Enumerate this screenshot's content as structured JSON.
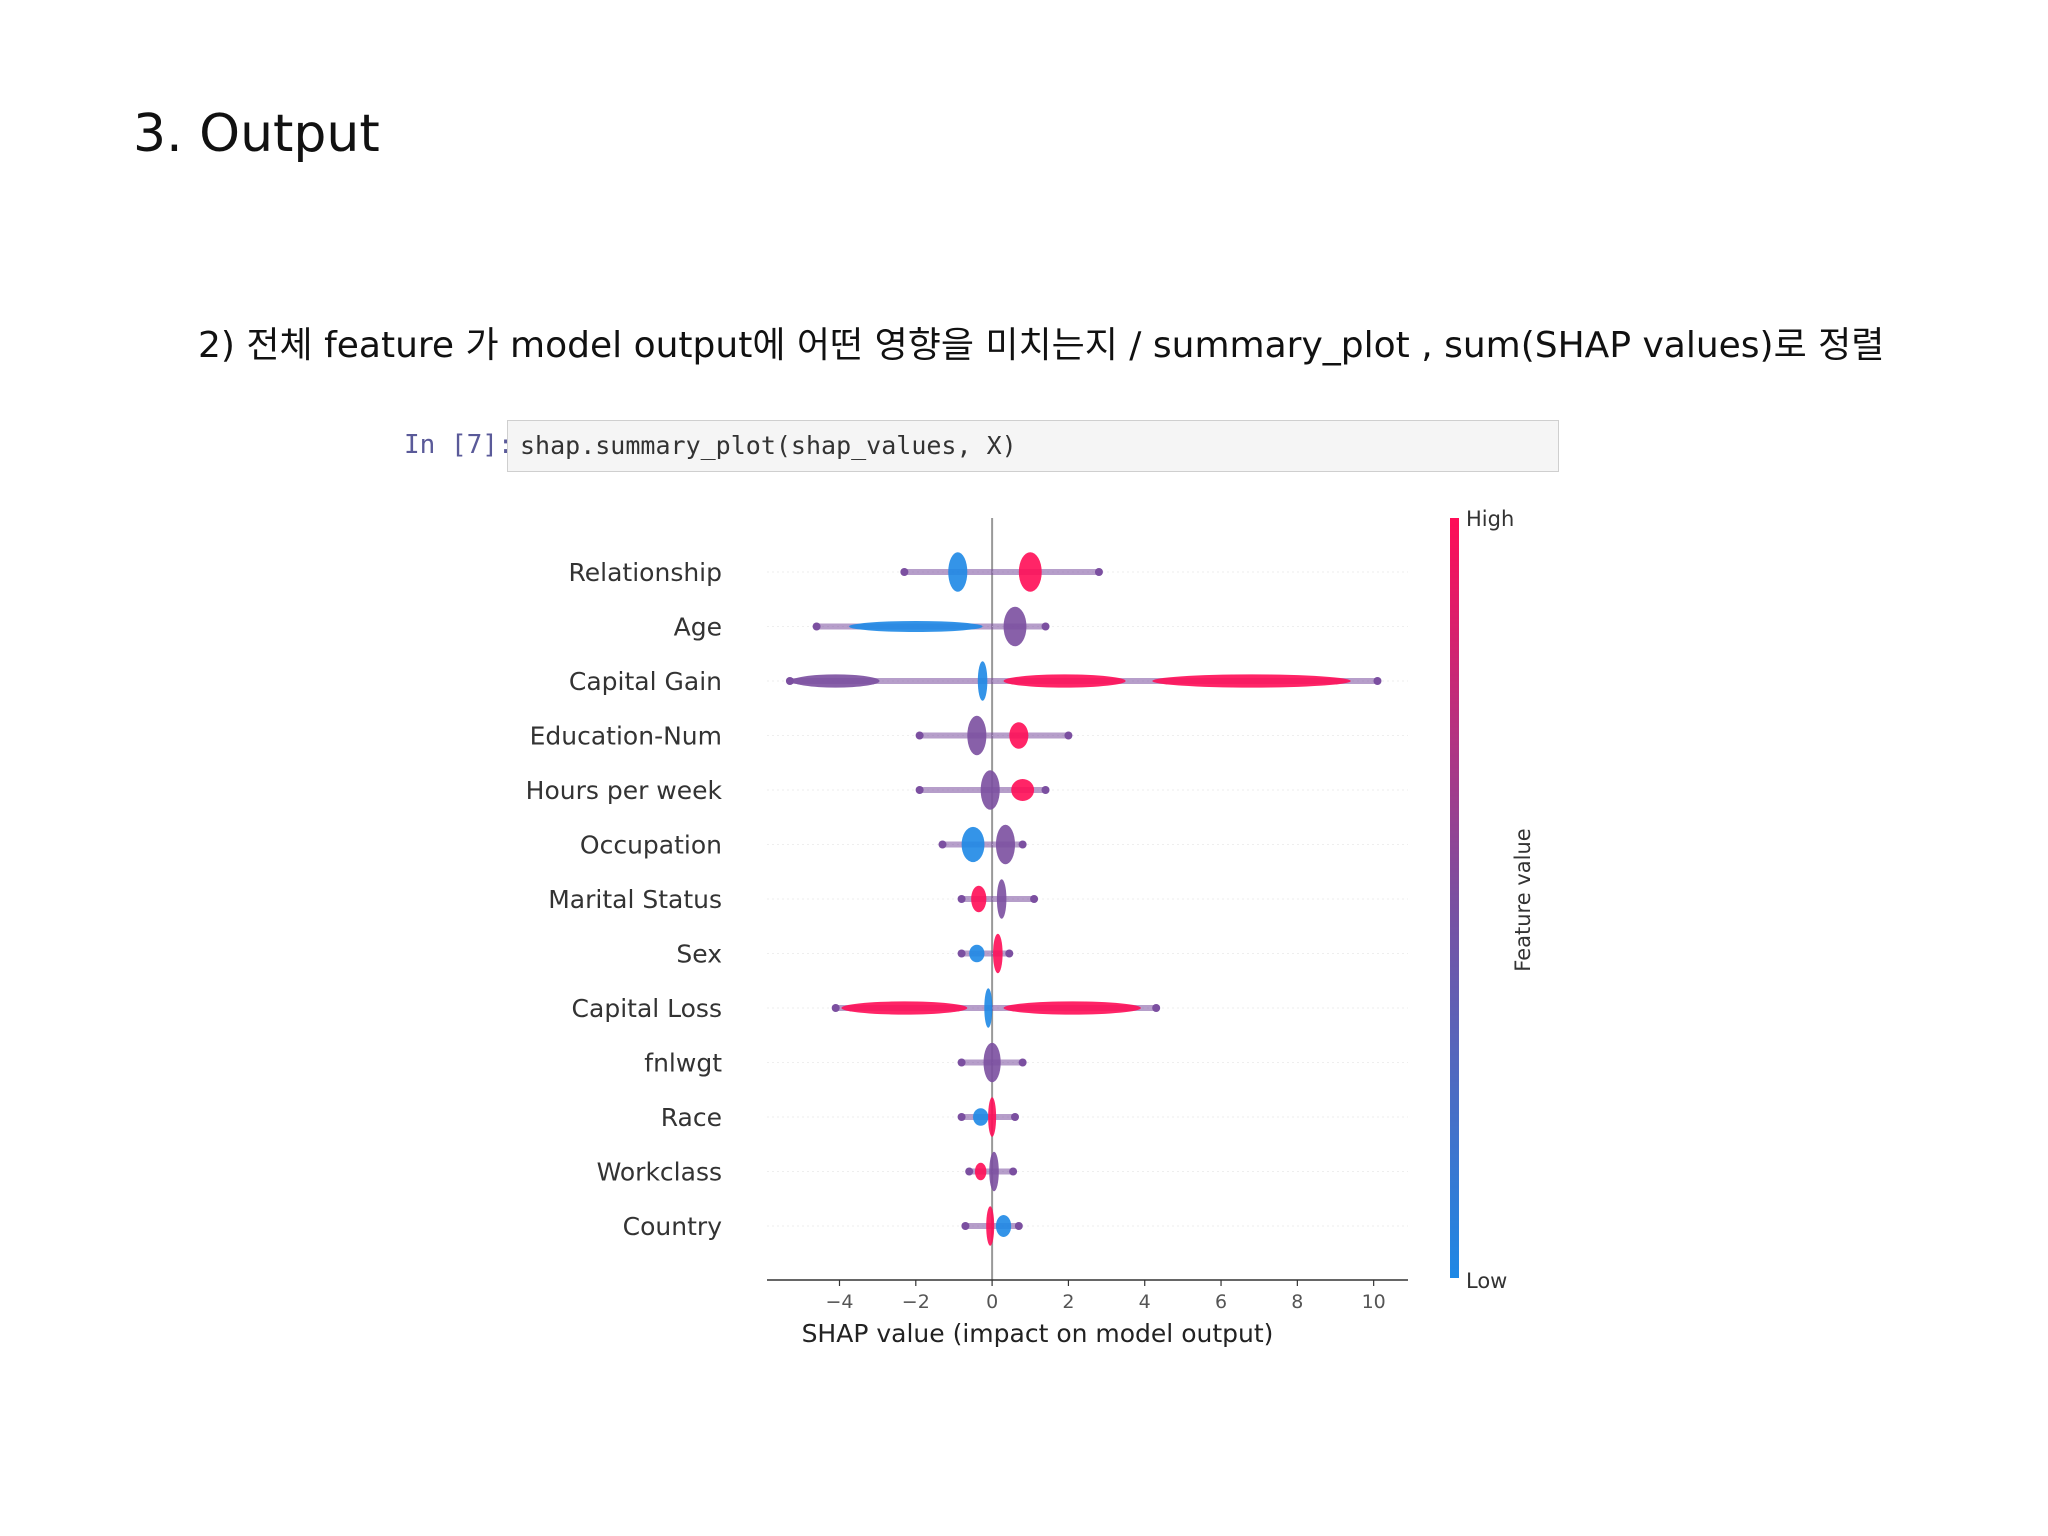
{
  "slide": {
    "title": "3. Output",
    "subtitle": "2) 전체 feature 가 model output에 어떤 영향을 미치는지  /  summary_plot , sum(SHAP values)로 정렬"
  },
  "notebook": {
    "prompt": "In [7]:",
    "code": "shap.summary_plot(shap_values, X)"
  },
  "colors": {
    "high": "#ff0d57",
    "low": "#1e88e5",
    "mid": "#7b4fa0"
  },
  "chart_data": {
    "type": "scatter",
    "subtype": "shap-beeswarm",
    "xlabel": "SHAP value (impact on model output)",
    "x_ticks": [
      "−4",
      "−2",
      "0",
      "2",
      "4",
      "6",
      "8",
      "10"
    ],
    "x_tick_values": [
      -4,
      -2,
      0,
      2,
      4,
      6,
      8,
      10
    ],
    "xlim": [
      -5.9,
      10.9
    ],
    "colorbar": {
      "label": "Feature value",
      "high": "High",
      "low": "Low"
    },
    "features": [
      {
        "name": "Relationship",
        "min": -2.3,
        "max": 2.8,
        "clusters": [
          {
            "x": -0.9,
            "width": 0.5,
            "height": 0.9,
            "color": "low"
          },
          {
            "x": 1.0,
            "width": 0.6,
            "height": 0.9,
            "color": "high"
          }
        ]
      },
      {
        "name": "Age",
        "min": -4.6,
        "max": 1.4,
        "clusters": [
          {
            "x": -2.0,
            "width": 3.5,
            "height": 0.25,
            "color": "low"
          },
          {
            "x": 0.6,
            "width": 0.6,
            "height": 0.9,
            "color": "mid"
          }
        ]
      },
      {
        "name": "Capital Gain",
        "min": -5.3,
        "max": 10.1,
        "clusters": [
          {
            "x": -4.1,
            "width": 2.3,
            "height": 0.3,
            "color": "mid"
          },
          {
            "x": -0.25,
            "width": 0.25,
            "height": 0.9,
            "color": "low"
          },
          {
            "x": 1.9,
            "width": 3.2,
            "height": 0.3,
            "color": "high"
          },
          {
            "x": 6.8,
            "width": 5.2,
            "height": 0.3,
            "color": "high"
          }
        ]
      },
      {
        "name": "Education-Num",
        "min": -1.9,
        "max": 2.0,
        "clusters": [
          {
            "x": -0.4,
            "width": 0.5,
            "height": 0.9,
            "color": "mid"
          },
          {
            "x": 0.7,
            "width": 0.5,
            "height": 0.6,
            "color": "high"
          }
        ]
      },
      {
        "name": "Hours per week",
        "min": -1.9,
        "max": 1.4,
        "clusters": [
          {
            "x": -0.05,
            "width": 0.5,
            "height": 0.9,
            "color": "mid"
          },
          {
            "x": 0.8,
            "width": 0.6,
            "height": 0.5,
            "color": "high"
          }
        ]
      },
      {
        "name": "Occupation",
        "min": -1.3,
        "max": 0.8,
        "clusters": [
          {
            "x": -0.5,
            "width": 0.6,
            "height": 0.8,
            "color": "low"
          },
          {
            "x": 0.35,
            "width": 0.5,
            "height": 0.9,
            "color": "mid"
          }
        ]
      },
      {
        "name": "Marital Status",
        "min": -0.8,
        "max": 1.1,
        "clusters": [
          {
            "x": -0.35,
            "width": 0.4,
            "height": 0.6,
            "color": "high"
          },
          {
            "x": 0.25,
            "width": 0.25,
            "height": 0.9,
            "color": "mid"
          }
        ]
      },
      {
        "name": "Sex",
        "min": -0.8,
        "max": 0.45,
        "clusters": [
          {
            "x": -0.4,
            "width": 0.4,
            "height": 0.4,
            "color": "low"
          },
          {
            "x": 0.15,
            "width": 0.25,
            "height": 0.9,
            "color": "high"
          }
        ]
      },
      {
        "name": "Capital Loss",
        "min": -4.1,
        "max": 4.3,
        "clusters": [
          {
            "x": -2.3,
            "width": 3.3,
            "height": 0.3,
            "color": "high"
          },
          {
            "x": -0.1,
            "width": 0.2,
            "height": 0.9,
            "color": "low"
          },
          {
            "x": 2.1,
            "width": 3.6,
            "height": 0.3,
            "color": "high"
          }
        ]
      },
      {
        "name": "fnlwgt",
        "min": -0.8,
        "max": 0.8,
        "clusters": [
          {
            "x": 0.0,
            "width": 0.45,
            "height": 0.9,
            "color": "mid"
          }
        ]
      },
      {
        "name": "Race",
        "min": -0.8,
        "max": 0.6,
        "clusters": [
          {
            "x": -0.3,
            "width": 0.4,
            "height": 0.4,
            "color": "low"
          },
          {
            "x": 0.0,
            "width": 0.2,
            "height": 0.9,
            "color": "high"
          }
        ]
      },
      {
        "name": "Workclass",
        "min": -0.6,
        "max": 0.55,
        "clusters": [
          {
            "x": -0.3,
            "width": 0.3,
            "height": 0.4,
            "color": "high"
          },
          {
            "x": 0.05,
            "width": 0.25,
            "height": 0.9,
            "color": "mid"
          }
        ]
      },
      {
        "name": "Country",
        "min": -0.7,
        "max": 0.7,
        "clusters": [
          {
            "x": 0.3,
            "width": 0.4,
            "height": 0.5,
            "color": "low"
          },
          {
            "x": -0.05,
            "width": 0.2,
            "height": 0.9,
            "color": "high"
          }
        ]
      }
    ]
  }
}
